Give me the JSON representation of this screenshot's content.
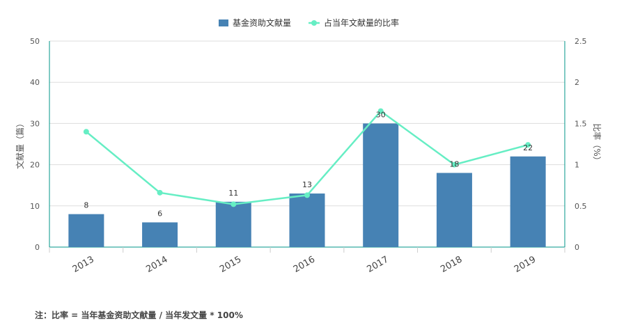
{
  "chart_data": {
    "type": "bar",
    "categories": [
      "2013",
      "2014",
      "2015",
      "2016",
      "2017",
      "2018",
      "2019"
    ],
    "series": [
      {
        "name": "基金资助文献量",
        "type": "bar",
        "axis": "left",
        "values": [
          8,
          6,
          11,
          13,
          30,
          18,
          22
        ],
        "color": "#4682b4"
      },
      {
        "name": "占当年文献量的比率",
        "type": "line",
        "axis": "right",
        "values": [
          1.4,
          0.66,
          0.52,
          0.63,
          1.65,
          1.0,
          1.24
        ],
        "color": "#66eec4"
      }
    ],
    "ylabel": "文献量（篇）",
    "y2label": "比率（%）",
    "ylim": [
      0,
      50
    ],
    "y2lim": [
      0,
      2.5
    ],
    "yticks": [
      "0",
      "10",
      "20",
      "30",
      "40",
      "50"
    ],
    "y2ticks": [
      "0",
      "0.5",
      "1",
      "1.5",
      "2",
      "2.5"
    ],
    "grid": true,
    "legend": "top-center",
    "axis_color": "#009688"
  },
  "note": "注：比率 = 当年基金资助文献量 / 当年发文量 * 100%"
}
